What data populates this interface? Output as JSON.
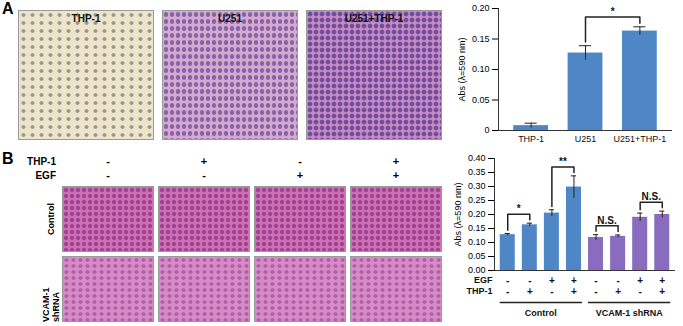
{
  "panels": {
    "A": {
      "label": "A",
      "images": [
        "THP-1",
        "U251",
        "U251+THP-1"
      ]
    },
    "B": {
      "label": "B",
      "columns": [
        {
          "label": "THP-1",
          "values": [
            "-",
            "+",
            "-",
            "+"
          ]
        },
        {
          "label": "EGF",
          "values": [
            "-",
            "-",
            "+",
            "+"
          ]
        }
      ],
      "rows": [
        "Control",
        "VCAM-1 shRNA"
      ]
    }
  },
  "chart_data": [
    {
      "type": "bar",
      "categories": [
        "THP-1",
        "U251",
        "U251+THP-1"
      ],
      "values": [
        0.008,
        0.127,
        0.163
      ],
      "errors": [
        0.004,
        0.012,
        0.007
      ],
      "color": "#4f86c6",
      "y_label": "Abs (λ=590 nm)",
      "ylim": [
        0,
        0.2
      ],
      "yticks": [
        0,
        0.05,
        {
          "value": 0.1,
          "label": "0.10"
        },
        0.15,
        {
          "value": 0.2,
          "label": "0.20"
        }
      ],
      "annotations": [
        {
          "text": "*",
          "between": [
            1,
            2
          ]
        }
      ]
    },
    {
      "type": "bar",
      "categories": [
        null,
        null,
        null,
        null,
        null,
        null,
        null,
        null
      ],
      "values": [
        0.128,
        0.163,
        0.205,
        0.298,
        0.118,
        0.122,
        0.19,
        0.2
      ],
      "errors": [
        0.004,
        0.006,
        0.012,
        0.04,
        0.01,
        0.005,
        0.015,
        0.012
      ],
      "colors": [
        "#4f86c6",
        "#4f86c6",
        "#4f86c6",
        "#4f86c6",
        "#8a6cbf",
        "#8a6cbf",
        "#8a6cbf",
        "#8a6cbf"
      ],
      "y_label": "Abs (λ=590 nm)",
      "ylim": [
        0,
        0.4
      ],
      "yticks": [
        {
          "value": 0,
          "label": "0.00"
        },
        0.05,
        {
          "value": 0.1,
          "label": "0.10"
        },
        0.15,
        {
          "value": 0.2,
          "label": "0.20"
        },
        0.25,
        {
          "value": 0.3,
          "label": "0.30"
        },
        0.35,
        {
          "value": 0.4,
          "label": "0.40"
        }
      ],
      "tick_labels": "y",
      "x_table": [
        {
          "label": "EGF",
          "values": [
            "-",
            "-",
            "+",
            "+",
            "-",
            "-",
            "+",
            "+"
          ]
        },
        {
          "label": "THP-1",
          "values": [
            "-",
            "+",
            "-",
            "+",
            "-",
            "+",
            "-",
            "+"
          ]
        }
      ],
      "groups": [
        {
          "label": "Control",
          "range": [
            0,
            3
          ]
        },
        {
          "label": "VCAM-1 shRNA",
          "range": [
            4,
            7
          ]
        }
      ],
      "annotations": [
        {
          "text": "*",
          "between": [
            0,
            1
          ]
        },
        {
          "text": "**",
          "between": [
            2,
            3
          ]
        },
        {
          "text": "N.S.",
          "between": [
            4,
            5
          ]
        },
        {
          "text": "N.S.",
          "between": [
            6,
            7
          ]
        }
      ]
    }
  ]
}
